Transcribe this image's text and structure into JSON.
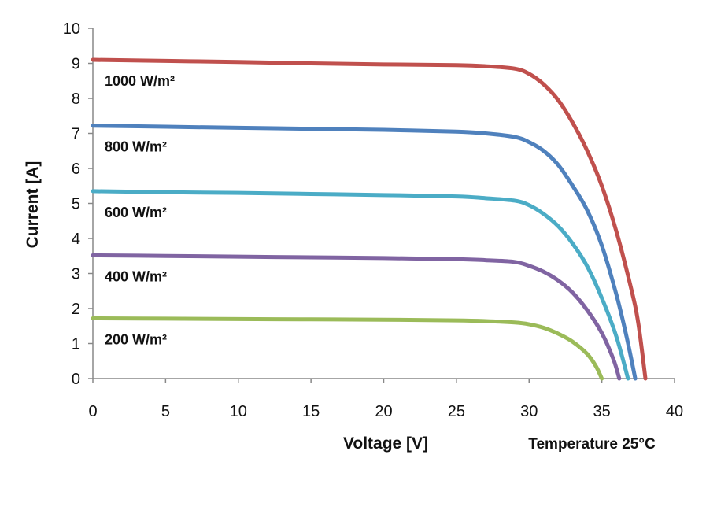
{
  "chart_data": {
    "type": "line",
    "xlabel": "Voltage [V]",
    "ylabel": "Current [A]",
    "annotation": "Temperature 25°C",
    "xlim": [
      0,
      40
    ],
    "ylim": [
      0,
      10
    ],
    "xticks": [
      0,
      5,
      10,
      15,
      20,
      25,
      30,
      35,
      40
    ],
    "yticks": [
      0,
      1,
      2,
      3,
      4,
      5,
      6,
      7,
      8,
      9,
      10
    ],
    "grid": false,
    "series": [
      {
        "name": "1000 W/m²",
        "color": "#c0504d",
        "points": [
          [
            0,
            9.1
          ],
          [
            5,
            9.07
          ],
          [
            10,
            9.04
          ],
          [
            15,
            9.0
          ],
          [
            20,
            8.97
          ],
          [
            25,
            8.95
          ],
          [
            27,
            8.92
          ],
          [
            29,
            8.85
          ],
          [
            30,
            8.7
          ],
          [
            31,
            8.4
          ],
          [
            32,
            7.95
          ],
          [
            33,
            7.3
          ],
          [
            34,
            6.5
          ],
          [
            35,
            5.5
          ],
          [
            36,
            4.2
          ],
          [
            37,
            2.6
          ],
          [
            37.5,
            1.6
          ],
          [
            38,
            0
          ]
        ]
      },
      {
        "name": "800 W/m²",
        "color": "#4f81bd",
        "points": [
          [
            0,
            7.22
          ],
          [
            5,
            7.19
          ],
          [
            10,
            7.16
          ],
          [
            15,
            7.13
          ],
          [
            20,
            7.1
          ],
          [
            25,
            7.05
          ],
          [
            27,
            7.0
          ],
          [
            29,
            6.9
          ],
          [
            30,
            6.75
          ],
          [
            31,
            6.5
          ],
          [
            32,
            6.1
          ],
          [
            33,
            5.5
          ],
          [
            34,
            4.8
          ],
          [
            35,
            3.8
          ],
          [
            36,
            2.4
          ],
          [
            36.7,
            1.2
          ],
          [
            37.3,
            0
          ]
        ]
      },
      {
        "name": "600 W/m²",
        "color": "#4bacc6",
        "points": [
          [
            0,
            5.35
          ],
          [
            5,
            5.32
          ],
          [
            10,
            5.3
          ],
          [
            15,
            5.27
          ],
          [
            20,
            5.24
          ],
          [
            25,
            5.2
          ],
          [
            27,
            5.15
          ],
          [
            29,
            5.08
          ],
          [
            30,
            4.95
          ],
          [
            31,
            4.7
          ],
          [
            32,
            4.35
          ],
          [
            33,
            3.85
          ],
          [
            34,
            3.2
          ],
          [
            35,
            2.3
          ],
          [
            36,
            1.2
          ],
          [
            36.8,
            0
          ]
        ]
      },
      {
        "name": "400 W/m²",
        "color": "#8064a2",
        "points": [
          [
            0,
            3.52
          ],
          [
            5,
            3.5
          ],
          [
            10,
            3.48
          ],
          [
            15,
            3.46
          ],
          [
            20,
            3.44
          ],
          [
            25,
            3.41
          ],
          [
            27,
            3.38
          ],
          [
            29,
            3.33
          ],
          [
            30,
            3.22
          ],
          [
            31,
            3.05
          ],
          [
            32,
            2.8
          ],
          [
            33,
            2.45
          ],
          [
            34,
            1.95
          ],
          [
            35,
            1.3
          ],
          [
            35.8,
            0.55
          ],
          [
            36.2,
            0
          ]
        ]
      },
      {
        "name": "200 W/m²",
        "color": "#9bbb59",
        "points": [
          [
            0,
            1.72
          ],
          [
            5,
            1.71
          ],
          [
            10,
            1.7
          ],
          [
            15,
            1.69
          ],
          [
            20,
            1.68
          ],
          [
            25,
            1.66
          ],
          [
            27,
            1.64
          ],
          [
            29,
            1.6
          ],
          [
            30,
            1.55
          ],
          [
            31,
            1.45
          ],
          [
            32,
            1.28
          ],
          [
            33,
            1.05
          ],
          [
            34,
            0.7
          ],
          [
            34.6,
            0.35
          ],
          [
            35,
            0
          ]
        ]
      }
    ]
  }
}
